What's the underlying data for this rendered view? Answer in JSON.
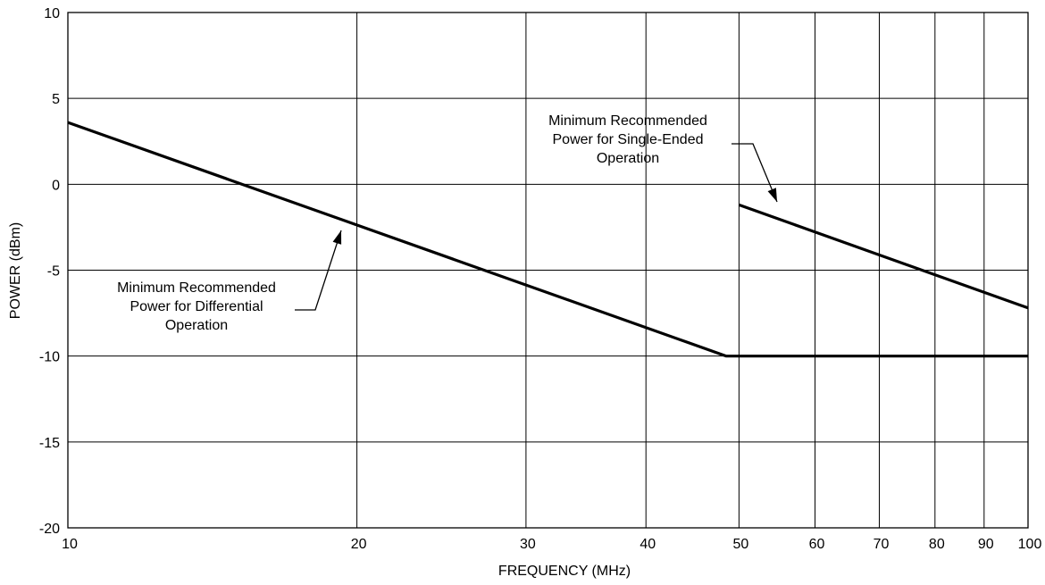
{
  "chart_data": {
    "type": "line",
    "title": "",
    "xlabel": "FREQUENCY (MHz)",
    "ylabel": "POWER (dBm)",
    "x_scale": "log",
    "xlim": [
      10,
      100
    ],
    "ylim": [
      -20,
      10
    ],
    "grid": true,
    "x_ticks": [
      10,
      20,
      30,
      40,
      50,
      60,
      70,
      80,
      90,
      100
    ],
    "x_tick_labels": [
      "10",
      "20",
      "30",
      "40",
      "50",
      "60",
      "70",
      "80",
      "90",
      "100"
    ],
    "y_ticks": [
      10,
      5,
      0,
      -5,
      -10,
      -15,
      -20
    ],
    "y_tick_labels": [
      "10",
      "5",
      "0",
      "-5",
      "-10",
      "-15",
      "-20"
    ],
    "series": [
      {
        "x": [
          10,
          48.5,
          100
        ],
        "y": [
          3.6,
          -10,
          -10
        ]
      },
      {
        "x": [
          50,
          100
        ],
        "y": [
          -1.2,
          -7.2
        ]
      }
    ],
    "annotations": [
      {
        "lines": [
          "Minimum Recommended",
          "Power for Differential",
          "Operation"
        ],
        "target": [
          19.7,
          -2.4
        ]
      },
      {
        "lines": [
          "Minimum Recommended",
          "Power for Single-Ended",
          "Operation"
        ],
        "target": [
          52,
          -1.6
        ]
      }
    ]
  }
}
